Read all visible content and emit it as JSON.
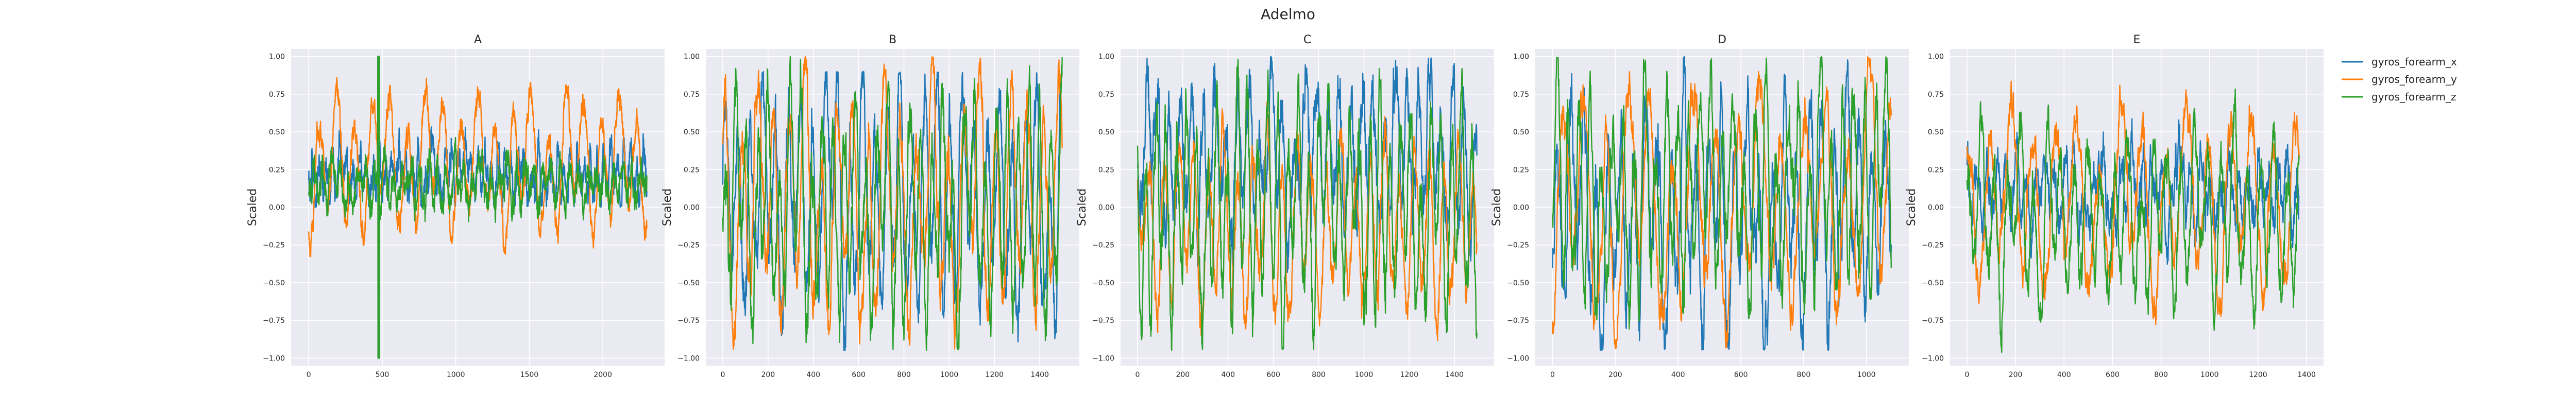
{
  "chart_data": {
    "type": "line",
    "title": "Adelmo",
    "ylabel": "Scaled",
    "ylim": [
      -1.05,
      1.05
    ],
    "yticks": [
      -1.0,
      -0.75,
      -0.5,
      -0.25,
      0.0,
      0.25,
      0.5,
      0.75,
      1.0
    ],
    "ytick_labels": [
      "−1.00",
      "−0.75",
      "−0.50",
      "−0.25",
      "0.00",
      "0.25",
      "0.50",
      "0.75",
      "1.00"
    ],
    "grid": true,
    "legend_position": "right",
    "series_names": [
      "gyros_forearm_x",
      "gyros_forearm_y",
      "gyros_forearm_z"
    ],
    "series_colors": [
      "#1f77b4",
      "#ff7f0e",
      "#2ca02c"
    ],
    "panels": [
      {
        "title": "A",
        "xlim": [
          -120,
          2420
        ],
        "xticks": [
          0,
          500,
          1000,
          1500,
          2000
        ],
        "xtick_labels": [
          "0",
          "500",
          "1000",
          "1500",
          "2000"
        ],
        "n_points": 2300,
        "series": [
          {
            "name": "gyros_forearm_x",
            "base": 0.22,
            "amp": 0.12,
            "period": 45,
            "noise": 0.08,
            "burst_min": 0.0,
            "burst_max": 1.0,
            "burst_at": 470
          },
          {
            "name": "gyros_forearm_y",
            "base": 0.3,
            "amp": 0.35,
            "period": 120,
            "noise": 0.06,
            "burst_min": -0.35,
            "burst_max": 0.95,
            "burst_at": 470
          },
          {
            "name": "gyros_forearm_z",
            "base": 0.15,
            "amp": 0.1,
            "period": 60,
            "noise": 0.07,
            "burst_min": -1.0,
            "burst_max": 1.0,
            "burst_at": 470
          }
        ]
      },
      {
        "title": "B",
        "xlim": [
          -75,
          1575
        ],
        "xticks": [
          0,
          200,
          400,
          600,
          800,
          1000,
          1200,
          1400
        ],
        "xtick_labels": [
          "0",
          "200",
          "400",
          "600",
          "800",
          "1000",
          "1200",
          "1400"
        ],
        "n_points": 1500,
        "series": [
          {
            "name": "gyros_forearm_x",
            "base": 0.05,
            "amp": 0.55,
            "period": 55,
            "noise": 0.15,
            "burst_min": -0.95,
            "burst_max": 0.9,
            "burst_at": -1
          },
          {
            "name": "gyros_forearm_y",
            "base": 0.05,
            "amp": 0.6,
            "period": 70,
            "noise": 0.12,
            "burst_min": -0.95,
            "burst_max": 1.0,
            "burst_at": -1
          },
          {
            "name": "gyros_forearm_z",
            "base": 0.0,
            "amp": 0.55,
            "period": 48,
            "noise": 0.15,
            "burst_min": -0.95,
            "burst_max": 1.0,
            "burst_at": -1
          }
        ]
      },
      {
        "title": "C",
        "xlim": [
          -75,
          1575
        ],
        "xticks": [
          0,
          200,
          400,
          600,
          800,
          1000,
          1200,
          1400
        ],
        "xtick_labels": [
          "0",
          "200",
          "400",
          "600",
          "800",
          "1000",
          "1200",
          "1400"
        ],
        "n_points": 1500,
        "series": [
          {
            "name": "gyros_forearm_x",
            "base": 0.35,
            "amp": 0.35,
            "period": 50,
            "noise": 0.15,
            "burst_min": -0.95,
            "burst_max": 1.0,
            "burst_at": -1
          },
          {
            "name": "gyros_forearm_y",
            "base": -0.15,
            "amp": 0.45,
            "period": 65,
            "noise": 0.1,
            "burst_min": -0.95,
            "burst_max": 1.0,
            "burst_at": -1
          },
          {
            "name": "gyros_forearm_z",
            "base": 0.0,
            "amp": 0.55,
            "period": 45,
            "noise": 0.15,
            "burst_min": -0.95,
            "burst_max": 1.0,
            "burst_at": -1
          }
        ]
      },
      {
        "title": "D",
        "xlim": [
          -55,
          1135
        ],
        "xticks": [
          0,
          200,
          400,
          600,
          800,
          1000
        ],
        "xtick_labels": [
          "0",
          "200",
          "400",
          "600",
          "800",
          "1000"
        ],
        "n_points": 1080,
        "series": [
          {
            "name": "gyros_forearm_x",
            "base": -0.05,
            "amp": 0.5,
            "period": 40,
            "noise": 0.2,
            "burst_min": -0.95,
            "burst_max": 1.0,
            "burst_at": -1
          },
          {
            "name": "gyros_forearm_y",
            "base": 0.0,
            "amp": 0.6,
            "period": 70,
            "noise": 0.12,
            "burst_min": -0.95,
            "burst_max": 1.0,
            "burst_at": -1
          },
          {
            "name": "gyros_forearm_z",
            "base": 0.1,
            "amp": 0.5,
            "period": 35,
            "noise": 0.18,
            "burst_min": -0.95,
            "burst_max": 1.0,
            "burst_at": -1
          }
        ]
      },
      {
        "title": "E",
        "xlim": [
          -70,
          1470
        ],
        "xticks": [
          0,
          200,
          400,
          600,
          800,
          1000,
          1200,
          1400
        ],
        "xtick_labels": [
          "0",
          "200",
          "400",
          "600",
          "800",
          "1000",
          "1200",
          "1400"
        ],
        "n_points": 1370,
        "series": [
          {
            "name": "gyros_forearm_x",
            "base": 0.1,
            "amp": 0.15,
            "period": 40,
            "noise": 0.12,
            "burst_min": -0.95,
            "burst_max": 0.7,
            "burst_at": -1
          },
          {
            "name": "gyros_forearm_y",
            "base": 0.05,
            "amp": 0.45,
            "period": 90,
            "noise": 0.1,
            "burst_min": -0.95,
            "burst_max": 0.9,
            "burst_at": -1
          },
          {
            "name": "gyros_forearm_z",
            "base": -0.1,
            "amp": 0.4,
            "period": 55,
            "noise": 0.12,
            "burst_min": -0.98,
            "burst_max": 0.8,
            "burst_at": -1
          }
        ]
      }
    ]
  }
}
